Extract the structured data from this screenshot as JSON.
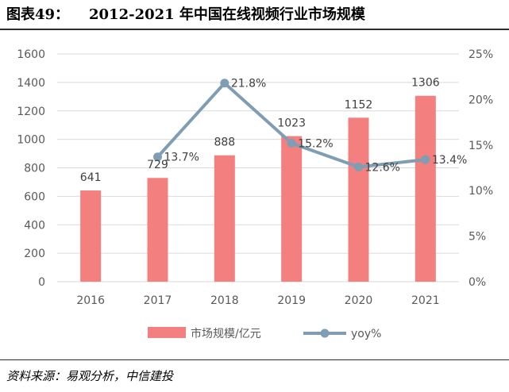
{
  "header": {
    "figure_label": "图表49：",
    "title": "2012-2021 年中国在线视频行业市场规模"
  },
  "source": "资料来源：易观分析，中信建投",
  "colors": {
    "bar": "#f47f7f",
    "line": "#7f9db3",
    "grid": "#d9d9d9",
    "axis_text": "#595959"
  },
  "chart_data": {
    "type": "bar",
    "title": "2012-2021 年中国在线视频行业市场规模",
    "categories": [
      "2016",
      "2017",
      "2018",
      "2019",
      "2020",
      "2021"
    ],
    "series": [
      {
        "name": "市场规模/亿元",
        "type": "bar",
        "axis": "left",
        "values": [
          641,
          729,
          888,
          1023,
          1152,
          1306
        ],
        "labels": [
          "641",
          "729",
          "888",
          "1023",
          "1152",
          "1306"
        ]
      },
      {
        "name": "yoy%",
        "type": "line",
        "axis": "right",
        "values": [
          null,
          13.7,
          21.8,
          15.2,
          12.6,
          13.4
        ],
        "labels": [
          "",
          "13.7%",
          "21.8%",
          "15.2%",
          "12.6%",
          "13.4%"
        ]
      }
    ],
    "left_axis": {
      "min": 0,
      "max": 1600,
      "ticks": [
        "0",
        "200",
        "400",
        "600",
        "800",
        "1000",
        "1200",
        "1400",
        "1600"
      ]
    },
    "right_axis": {
      "min": 0,
      "max": 25,
      "ticks": [
        "0%",
        "5%",
        "10%",
        "15%",
        "20%",
        "25%"
      ]
    },
    "grid": true,
    "legend": {
      "position": "bottom",
      "entries": [
        "市场规模/亿元",
        "yoy%"
      ]
    }
  }
}
